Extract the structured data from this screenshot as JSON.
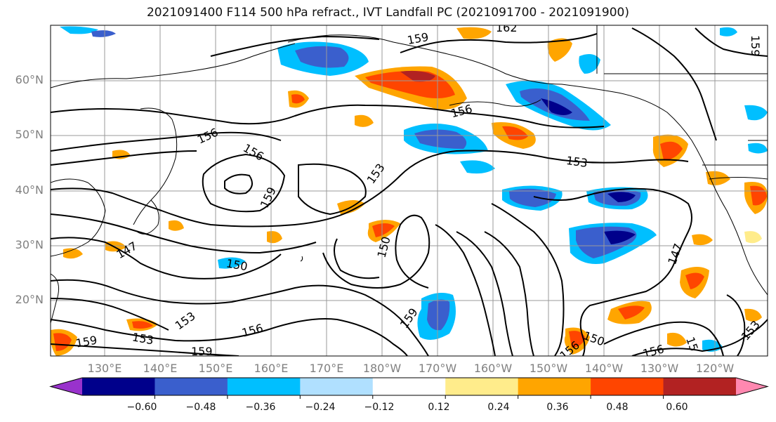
{
  "title": "2021091400 F114 500 hPa refract., IVT Landfall PC (2021091700 - 2021091900)",
  "lat_labels": [
    "60°N",
    "50°N",
    "40°N",
    "30°N",
    "20°N"
  ],
  "lon_labels": [
    "130°E",
    "140°E",
    "150°E",
    "160°E",
    "170°E",
    "180°W",
    "170°W",
    "160°W",
    "150°W",
    "140°W",
    "130°W",
    "120°W"
  ],
  "colorbar": {
    "colors": [
      "#9932cc",
      "#00008b",
      "#3a5fcd",
      "#00bfff",
      "#b0e0ff",
      "#ffffff",
      "#ffec8b",
      "#ffa500",
      "#ff4500",
      "#b22222",
      "#ff88b0"
    ],
    "tick_labels": [
      "−0.60",
      "−0.48",
      "−0.36",
      "−0.24",
      "−0.12",
      "0.12",
      "0.24",
      "0.36",
      "0.48",
      "0.60"
    ]
  },
  "contour_labels": [
    {
      "text": "159"
    },
    {
      "text": "162"
    },
    {
      "text": "156"
    },
    {
      "text": "156"
    },
    {
      "text": "156"
    },
    {
      "text": "159"
    },
    {
      "text": "153"
    },
    {
      "text": "153"
    },
    {
      "text": "150"
    },
    {
      "text": "150"
    },
    {
      "text": "147"
    },
    {
      "text": "147"
    },
    {
      "text": "153"
    },
    {
      "text": "156"
    },
    {
      "text": "159"
    },
    {
      "text": "159"
    },
    {
      "text": "153"
    },
    {
      "text": "159"
    },
    {
      "text": "156"
    },
    {
      "text": "150"
    },
    {
      "text": "156"
    },
    {
      "text": "153"
    },
    {
      "text": "15"
    },
    {
      "text": "159"
    }
  ]
}
